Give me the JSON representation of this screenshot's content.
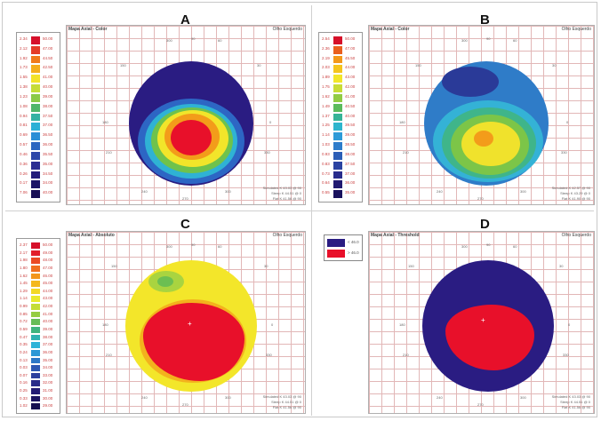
{
  "colors": {
    "dark_blue": "#2a1c82",
    "red": "#e8102a",
    "yellow": "#f3ec1c",
    "green": "#6cc04a",
    "cyan": "#33c3e0",
    "orange": "#f39c1a",
    "grid": "#e2b7b7"
  },
  "panels": [
    {
      "letter": "A",
      "title": "Mapa Axial - Color",
      "eye": "Olho Esquerdo",
      "scale": [
        {
          "left": "2.34",
          "right": "50.00",
          "color": "#d6102a"
        },
        {
          "left": "2.12",
          "right": "47.00",
          "color": "#e43c28"
        },
        {
          "left": "1.92",
          "right": "44.50",
          "color": "#f07a1c"
        },
        {
          "left": "1.73",
          "right": "42.50",
          "color": "#f4ad1d"
        },
        {
          "left": "1.55",
          "right": "41.00",
          "color": "#f3e22a"
        },
        {
          "left": "1.38",
          "right": "40.00",
          "color": "#c6dc38"
        },
        {
          "left": "1.23",
          "right": "39.00",
          "color": "#8bca47"
        },
        {
          "left": "1.08",
          "right": "38.00",
          "color": "#4fb66a"
        },
        {
          "left": "0.94",
          "right": "37.50",
          "color": "#34b2a3"
        },
        {
          "left": "0.81",
          "right": "37.00",
          "color": "#2cb0d6"
        },
        {
          "left": "0.69",
          "right": "36.50",
          "color": "#2b8fd6"
        },
        {
          "left": "0.57",
          "right": "36.00",
          "color": "#2c66c0"
        },
        {
          "left": "0.46",
          "right": "35.50",
          "color": "#2c46a8"
        },
        {
          "left": "0.36",
          "right": "35.00",
          "color": "#2b2d92"
        },
        {
          "left": "0.26",
          "right": "34.50",
          "color": "#241c7a"
        },
        {
          "left": "0.17",
          "right": "34.00",
          "color": "#1c1466"
        },
        {
          "left": "7.06",
          "right": "40.00",
          "color": "#180f55"
        }
      ],
      "info": [
        "Simulated K 43.03 @ 90",
        "Steep K 44.51 @ 0",
        "Flat K 41.56 @ 90"
      ]
    },
    {
      "letter": "B",
      "title": "Mapa Axial - Color",
      "eye": "Olho Esquerdo",
      "scale": [
        {
          "left": "2.54",
          "right": "50.00",
          "color": "#d6102a"
        },
        {
          "left": "2.36",
          "right": "47.00",
          "color": "#e9601f"
        },
        {
          "left": "2.19",
          "right": "45.50",
          "color": "#f3991b"
        },
        {
          "left": "2.03",
          "right": "44.00",
          "color": "#f4c51e"
        },
        {
          "left": "1.89",
          "right": "43.00",
          "color": "#f2e62a"
        },
        {
          "left": "1.75",
          "right": "42.00",
          "color": "#c9dc36"
        },
        {
          "left": "1.62",
          "right": "41.00",
          "color": "#92cc44"
        },
        {
          "left": "1.49",
          "right": "40.50",
          "color": "#5bbb5c"
        },
        {
          "left": "1.37",
          "right": "40.00",
          "color": "#36b497"
        },
        {
          "left": "1.25",
          "right": "39.50",
          "color": "#2eb5cd"
        },
        {
          "left": "1.14",
          "right": "39.00",
          "color": "#2e9bd8"
        },
        {
          "left": "1.03",
          "right": "38.50",
          "color": "#2d7ccb"
        },
        {
          "left": "0.93",
          "right": "38.00",
          "color": "#2c5eb7"
        },
        {
          "left": "0.83",
          "right": "37.50",
          "color": "#2b43a2"
        },
        {
          "left": "0.73",
          "right": "37.00",
          "color": "#282c8c"
        },
        {
          "left": "0.64",
          "right": "36.00",
          "color": "#211a72"
        },
        {
          "left": "0.55",
          "right": "35.00",
          "color": "#19125e"
        }
      ],
      "info": [
        "Simulated K 42.57 @ 90",
        "Steep K 43.29 @ 0",
        "Flat K 41.90 @ 90"
      ]
    },
    {
      "letter": "C",
      "title": "Mapa Axial - Absoluto",
      "eye": "Olho Esquerdo",
      "scale": [
        {
          "left": "2.37",
          "right": "50.00",
          "color": "#d6102a"
        },
        {
          "left": "2.17",
          "right": "49.00",
          "color": "#e21f2a"
        },
        {
          "left": "1.98",
          "right": "48.00",
          "color": "#ea4a24"
        },
        {
          "left": "1.80",
          "right": "47.00",
          "color": "#f07020"
        },
        {
          "left": "1.62",
          "right": "46.00",
          "color": "#f3961c"
        },
        {
          "left": "1.45",
          "right": "45.00",
          "color": "#f4b81d"
        },
        {
          "left": "1.29",
          "right": "44.00",
          "color": "#f3d824"
        },
        {
          "left": "1.14",
          "right": "43.00",
          "color": "#eae92c"
        },
        {
          "left": "0.99",
          "right": "42.00",
          "color": "#c4dd36"
        },
        {
          "left": "0.85",
          "right": "41.00",
          "color": "#95cd42"
        },
        {
          "left": "0.72",
          "right": "40.00",
          "color": "#66bd56"
        },
        {
          "left": "0.59",
          "right": "39.00",
          "color": "#3fb47e"
        },
        {
          "left": "0.47",
          "right": "38.00",
          "color": "#30b3b2"
        },
        {
          "left": "0.35",
          "right": "37.00",
          "color": "#2db3d8"
        },
        {
          "left": "0.24",
          "right": "36.00",
          "color": "#2d98d6"
        },
        {
          "left": "0.13",
          "right": "35.00",
          "color": "#2c78c6"
        },
        {
          "left": "0.03",
          "right": "34.00",
          "color": "#2c58b2"
        },
        {
          "left": "0.07",
          "right": "33.00",
          "color": "#2b3f9e"
        },
        {
          "left": "0.16",
          "right": "32.00",
          "color": "#292c8a"
        },
        {
          "left": "0.25",
          "right": "31.00",
          "color": "#231c74"
        },
        {
          "left": "0.33",
          "right": "30.00",
          "color": "#1b1460"
        },
        {
          "left": "1.02",
          "right": "29.00",
          "color": "#160f50"
        }
      ],
      "info": [
        "Simulated K 43.03 @ 90",
        "Steep K 44.51 @ 0",
        "Flat K 41.56 @ 90"
      ]
    },
    {
      "letter": "D",
      "title": "Mapa Axial - Threshold",
      "eye": "Olho Esquerdo",
      "legend": [
        {
          "label": "< 46.0",
          "color": "#2a1c82"
        },
        {
          "label": "> 46.0",
          "color": "#e8102a"
        }
      ],
      "info": [
        "Simulated K 43.03 @ 90",
        "Steep K 44.51 @ 0",
        "Flat K 41.56 @ 90"
      ]
    }
  ],
  "ticks": {
    "top": [
      "300",
      "90",
      "60"
    ],
    "upper": [
      "150",
      "30"
    ],
    "mid": [
      "180",
      "0"
    ],
    "lower": [
      "210",
      "330"
    ],
    "bottom": [
      "240",
      "270",
      "300"
    ]
  }
}
